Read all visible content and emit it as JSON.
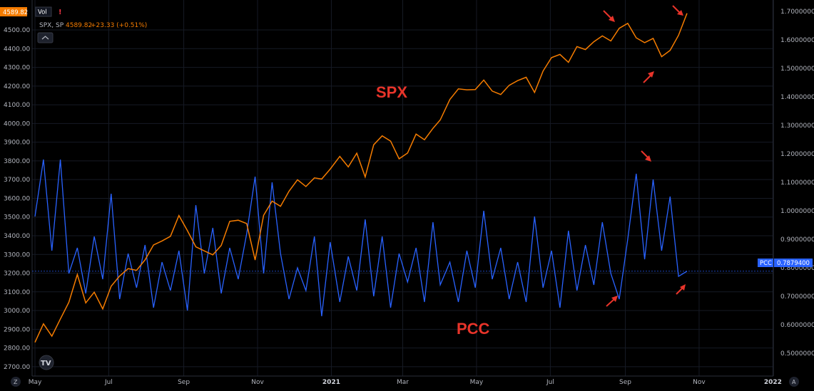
{
  "legend": {
    "symbol": "SPX, SP",
    "price": "4589.82",
    "change": "+23.33 (+0.51%)"
  },
  "badges": {
    "last_price": "4589.82",
    "vol": "Vol",
    "pcc_label": "PCC",
    "pcc_value": "0.7879400"
  },
  "corner": {
    "left": "Z",
    "right": "A"
  },
  "logo": "TV",
  "colors": {
    "background": "#000000",
    "spx": "#f57c00",
    "pcc": "#2962ff",
    "annotation": "#e8342a",
    "grid": "#161a25"
  },
  "chart_data": {
    "type": "line",
    "x_axis": {
      "labels": [
        "May",
        "Jul",
        "Sep",
        "Nov",
        "2021",
        "Mar",
        "May",
        "Jul",
        "Sep",
        "Nov",
        "2022"
      ],
      "start": "2020-05-01",
      "end": "2021-10-22"
    },
    "annotations": [
      "SPX",
      "PCC"
    ],
    "series": [
      {
        "name": "SPX",
        "axis": "left",
        "ylim": [
          2650,
          4660
        ],
        "yticks": [
          "4500.00",
          "4400.00",
          "4300.00",
          "4200.00",
          "4100.00",
          "4000.00",
          "3900.00",
          "3800.00",
          "3700.00",
          "3600.00",
          "3500.00",
          "3400.00",
          "3300.00",
          "3200.00",
          "3100.00",
          "3000.00",
          "2900.00",
          "2800.00",
          "2700.00"
        ],
        "points": [
          [
            "2020-05-01",
            2830
          ],
          [
            "2020-05-08",
            2929
          ],
          [
            "2020-05-15",
            2863
          ],
          [
            "2020-05-22",
            2955
          ],
          [
            "2020-05-29",
            3044
          ],
          [
            "2020-06-05",
            3193
          ],
          [
            "2020-06-12",
            3041
          ],
          [
            "2020-06-19",
            3098
          ],
          [
            "2020-06-26",
            3009
          ],
          [
            "2020-07-03",
            3130
          ],
          [
            "2020-07-10",
            3185
          ],
          [
            "2020-07-17",
            3224
          ],
          [
            "2020-07-24",
            3215
          ],
          [
            "2020-07-31",
            3271
          ],
          [
            "2020-08-07",
            3351
          ],
          [
            "2020-08-14",
            3372
          ],
          [
            "2020-08-21",
            3397
          ],
          [
            "2020-08-28",
            3508
          ],
          [
            "2020-09-04",
            3427
          ],
          [
            "2020-09-11",
            3341
          ],
          [
            "2020-09-18",
            3319
          ],
          [
            "2020-09-25",
            3298
          ],
          [
            "2020-10-02",
            3348
          ],
          [
            "2020-10-09",
            3477
          ],
          [
            "2020-10-16",
            3483
          ],
          [
            "2020-10-23",
            3465
          ],
          [
            "2020-10-30",
            3270
          ],
          [
            "2020-11-06",
            3509
          ],
          [
            "2020-11-13",
            3585
          ],
          [
            "2020-11-20",
            3557
          ],
          [
            "2020-11-27",
            3638
          ],
          [
            "2020-12-04",
            3699
          ],
          [
            "2020-12-11",
            3663
          ],
          [
            "2020-12-18",
            3709
          ],
          [
            "2020-12-24",
            3703
          ],
          [
            "2020-12-31",
            3756
          ],
          [
            "2021-01-08",
            3824
          ],
          [
            "2021-01-15",
            3768
          ],
          [
            "2021-01-22",
            3841
          ],
          [
            "2021-01-29",
            3714
          ],
          [
            "2021-02-05",
            3886
          ],
          [
            "2021-02-12",
            3934
          ],
          [
            "2021-02-19",
            3906
          ],
          [
            "2021-02-26",
            3811
          ],
          [
            "2021-03-05",
            3842
          ],
          [
            "2021-03-12",
            3943
          ],
          [
            "2021-03-19",
            3913
          ],
          [
            "2021-03-26",
            3974
          ],
          [
            "2021-04-01",
            4019
          ],
          [
            "2021-04-09",
            4128
          ],
          [
            "2021-04-16",
            4185
          ],
          [
            "2021-04-23",
            4180
          ],
          [
            "2021-04-30",
            4181
          ],
          [
            "2021-05-07",
            4232
          ],
          [
            "2021-05-14",
            4173
          ],
          [
            "2021-05-21",
            4155
          ],
          [
            "2021-05-28",
            4204
          ],
          [
            "2021-06-04",
            4229
          ],
          [
            "2021-06-11",
            4247
          ],
          [
            "2021-06-18",
            4166
          ],
          [
            "2021-06-25",
            4280
          ],
          [
            "2021-07-02",
            4352
          ],
          [
            "2021-07-09",
            4369
          ],
          [
            "2021-07-16",
            4327
          ],
          [
            "2021-07-23",
            4411
          ],
          [
            "2021-07-30",
            4395
          ],
          [
            "2021-08-06",
            4437
          ],
          [
            "2021-08-13",
            4468
          ],
          [
            "2021-08-20",
            4441
          ],
          [
            "2021-08-27",
            4509
          ],
          [
            "2021-09-03",
            4535
          ],
          [
            "2021-09-10",
            4458
          ],
          [
            "2021-09-17",
            4432
          ],
          [
            "2021-09-24",
            4455
          ],
          [
            "2021-10-01",
            4357
          ],
          [
            "2021-10-08",
            4391
          ],
          [
            "2021-10-15",
            4471
          ],
          [
            "2021-10-22",
            4589
          ]
        ]
      },
      {
        "name": "PCC",
        "axis": "right",
        "ylim": [
          0.42,
          1.74
        ],
        "yticks": [
          "1.7000000",
          "1.6000000",
          "1.5000000",
          "1.4000000",
          "1.3000000",
          "1.2000000",
          "1.1000000",
          "1.0000000",
          "0.9000000",
          "0.8000000",
          "0.7000000",
          "0.6000000",
          "0.5000000"
        ],
        "points": [
          [
            "2020-05-01",
            0.98
          ],
          [
            "2020-05-08",
            1.18
          ],
          [
            "2020-05-15",
            0.86
          ],
          [
            "2020-05-22",
            1.18
          ],
          [
            "2020-05-29",
            0.78
          ],
          [
            "2020-06-05",
            0.87
          ],
          [
            "2020-06-12",
            0.71
          ],
          [
            "2020-06-19",
            0.91
          ],
          [
            "2020-06-26",
            0.76
          ],
          [
            "2020-07-03",
            1.06
          ],
          [
            "2020-07-10",
            0.69
          ],
          [
            "2020-07-17",
            0.85
          ],
          [
            "2020-07-24",
            0.73
          ],
          [
            "2020-07-31",
            0.88
          ],
          [
            "2020-08-07",
            0.66
          ],
          [
            "2020-08-14",
            0.82
          ],
          [
            "2020-08-21",
            0.72
          ],
          [
            "2020-08-28",
            0.86
          ],
          [
            "2020-09-04",
            0.65
          ],
          [
            "2020-09-11",
            1.02
          ],
          [
            "2020-09-18",
            0.78
          ],
          [
            "2020-09-25",
            0.94
          ],
          [
            "2020-10-02",
            0.71
          ],
          [
            "2020-10-09",
            0.87
          ],
          [
            "2020-10-16",
            0.76
          ],
          [
            "2020-10-23",
            0.92
          ],
          [
            "2020-10-30",
            1.12
          ],
          [
            "2020-11-06",
            0.78
          ],
          [
            "2020-11-13",
            1.1
          ],
          [
            "2020-11-20",
            0.85
          ],
          [
            "2020-11-27",
            0.69
          ],
          [
            "2020-12-04",
            0.8
          ],
          [
            "2020-12-11",
            0.72
          ],
          [
            "2020-12-18",
            0.91
          ],
          [
            "2020-12-24",
            0.63
          ],
          [
            "2020-12-31",
            0.89
          ],
          [
            "2021-01-08",
            0.68
          ],
          [
            "2021-01-15",
            0.84
          ],
          [
            "2021-01-22",
            0.72
          ],
          [
            "2021-01-29",
            0.97
          ],
          [
            "2021-02-05",
            0.7
          ],
          [
            "2021-02-12",
            0.91
          ],
          [
            "2021-02-19",
            0.66
          ],
          [
            "2021-02-26",
            0.85
          ],
          [
            "2021-03-05",
            0.75
          ],
          [
            "2021-03-12",
            0.87
          ],
          [
            "2021-03-19",
            0.68
          ],
          [
            "2021-03-26",
            0.96
          ],
          [
            "2021-04-01",
            0.74
          ],
          [
            "2021-04-09",
            0.82
          ],
          [
            "2021-04-16",
            0.68
          ],
          [
            "2021-04-23",
            0.86
          ],
          [
            "2021-04-30",
            0.73
          ],
          [
            "2021-05-07",
            1.0
          ],
          [
            "2021-05-14",
            0.76
          ],
          [
            "2021-05-21",
            0.87
          ],
          [
            "2021-05-28",
            0.69
          ],
          [
            "2021-06-04",
            0.82
          ],
          [
            "2021-06-11",
            0.68
          ],
          [
            "2021-06-18",
            0.98
          ],
          [
            "2021-06-25",
            0.73
          ],
          [
            "2021-07-02",
            0.86
          ],
          [
            "2021-07-09",
            0.66
          ],
          [
            "2021-07-16",
            0.93
          ],
          [
            "2021-07-23",
            0.72
          ],
          [
            "2021-07-30",
            0.88
          ],
          [
            "2021-08-06",
            0.74
          ],
          [
            "2021-08-13",
            0.96
          ],
          [
            "2021-08-20",
            0.78
          ],
          [
            "2021-08-27",
            0.69
          ],
          [
            "2021-09-03",
            0.9
          ],
          [
            "2021-09-10",
            1.13
          ],
          [
            "2021-09-17",
            0.83
          ],
          [
            "2021-09-24",
            1.11
          ],
          [
            "2021-10-01",
            0.86
          ],
          [
            "2021-10-08",
            1.05
          ],
          [
            "2021-10-15",
            0.77
          ],
          [
            "2021-10-22",
            0.788
          ]
        ]
      }
    ],
    "grid": true,
    "legend": "top-left"
  }
}
